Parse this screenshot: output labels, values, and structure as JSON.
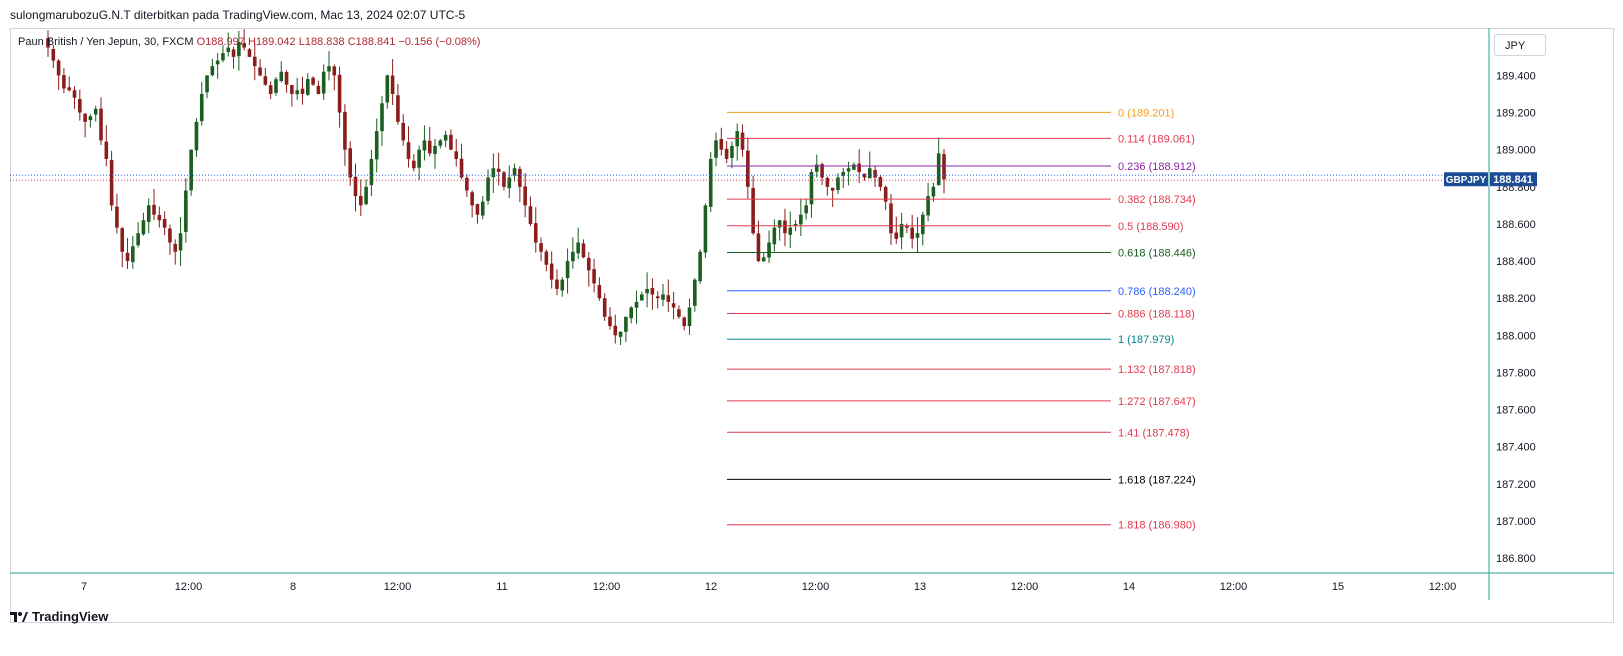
{
  "header": {
    "publisher_line": "sulongmarubozuG.N.T diterbitkan pada TradingView.com, Mac 13, 2024 02:07 UTC-5"
  },
  "legend": {
    "symbol_desc": "Paun British / Yen Jepun, 30, FXCM",
    "open": "O188.997",
    "high": "H189.042",
    "low": "L188.838",
    "close": "C188.841",
    "change": "−0.156 (−0.08%)"
  },
  "currency_button": "JPY",
  "footer": {
    "brand": "TradingView"
  },
  "colors": {
    "up": "#1b5e20",
    "down": "#8b1d1d",
    "axis_border": "#26a69a",
    "symbol_badge": "#1c4c96",
    "price_badge": "#1c4c96"
  },
  "chart_data": {
    "type": "candlestick",
    "symbol": "GBPJPY",
    "last_price": "188.841",
    "y_axis": {
      "ticks": [
        "189.400",
        "189.200",
        "189.000",
        "188.800",
        "188.600",
        "188.400",
        "188.200",
        "188.000",
        "187.800",
        "187.600",
        "187.400",
        "187.200",
        "187.000",
        "186.800"
      ],
      "range": [
        186.72,
        189.65
      ]
    },
    "x_axis": {
      "ticks": [
        "7",
        "12:00",
        "8",
        "12:00",
        "11",
        "12:00",
        "12",
        "12:00",
        "13",
        "12:00",
        "14",
        "12:00",
        "15",
        "12:00"
      ]
    },
    "fibonacci": [
      {
        "label": "0 (189.201)",
        "price": 189.201,
        "color": "#f59c1a"
      },
      {
        "label": "0.114 (189.061)",
        "price": 189.061,
        "color": "#e03a4d"
      },
      {
        "label": "0.236 (188.912)",
        "price": 188.912,
        "color": "#8e24aa"
      },
      {
        "label": "0.382 (188.734)",
        "price": 188.734,
        "color": "#e03a4d"
      },
      {
        "label": "0.5 (188.590)",
        "price": 188.59,
        "color": "#e03a4d"
      },
      {
        "label": "0.618 (188.446)",
        "price": 188.446,
        "color": "#1b5e20"
      },
      {
        "label": "0.786 (188.240)",
        "price": 188.24,
        "color": "#2962ff"
      },
      {
        "label": "0.886 (188.118)",
        "price": 188.118,
        "color": "#e03a4d"
      },
      {
        "label": "1 (187.979)",
        "price": 187.979,
        "color": "#00838f"
      },
      {
        "label": "1.132 (187.818)",
        "price": 187.818,
        "color": "#e03a4d"
      },
      {
        "label": "1.272 (187.647)",
        "price": 187.647,
        "color": "#e03a4d"
      },
      {
        "label": "1.41 (187.478)",
        "price": 187.478,
        "color": "#e03a4d"
      },
      {
        "label": "1.618 (187.224)",
        "price": 187.224,
        "color": "#000000"
      },
      {
        "label": "1.818 (186.980)",
        "price": 186.98,
        "color": "#e03a4d"
      }
    ],
    "close_path": [
      189.55,
      189.48,
      189.4,
      189.33,
      189.32,
      189.28,
      189.2,
      189.15,
      189.18,
      189.22,
      189.05,
      188.95,
      188.7,
      188.58,
      188.45,
      188.4,
      188.48,
      188.55,
      188.62,
      188.7,
      188.65,
      188.62,
      188.58,
      188.5,
      188.45,
      188.55,
      188.78,
      189.0,
      189.15,
      189.3,
      189.4,
      189.45,
      189.48,
      189.52,
      189.55,
      189.5,
      189.58,
      189.55,
      189.5,
      189.45,
      189.4,
      189.35,
      189.3,
      189.38,
      189.42,
      189.35,
      189.3,
      189.32,
      189.3,
      189.38,
      189.35,
      189.3,
      189.42,
      189.45,
      189.4,
      189.2,
      189.0,
      188.85,
      188.75,
      188.7,
      188.8,
      188.95,
      189.1,
      189.25,
      189.4,
      189.3,
      189.15,
      189.05,
      188.95,
      188.9,
      189.0,
      189.05,
      188.98,
      189.02,
      189.05,
      189.08,
      189.0,
      188.95,
      188.85,
      188.78,
      188.7,
      188.65,
      188.72,
      188.85,
      188.9,
      188.88,
      188.8,
      188.85,
      188.9,
      188.8,
      188.7,
      188.6,
      188.5,
      188.45,
      188.38,
      188.3,
      188.25,
      188.3,
      188.4,
      188.45,
      188.5,
      188.42,
      188.35,
      188.28,
      188.2,
      188.1,
      188.05,
      188.0,
      188.02,
      188.1,
      188.15,
      188.18,
      188.22,
      188.25,
      188.22,
      188.2,
      188.22,
      188.18,
      188.15,
      188.1,
      188.05,
      188.15,
      188.3,
      188.45,
      188.7,
      188.95,
      189.05,
      189.0,
      188.95,
      189.02,
      189.1,
      189.0,
      188.8,
      188.55,
      188.4,
      188.42,
      188.5,
      188.58,
      188.62,
      188.55,
      188.58,
      188.6,
      188.65,
      188.7,
      188.88,
      188.92,
      188.85,
      188.8,
      188.78,
      188.85,
      188.88,
      188.9,
      188.92,
      188.88,
      188.85,
      188.9,
      188.85,
      188.8,
      188.72,
      188.55,
      188.52,
      188.6,
      188.58,
      188.52,
      188.55,
      188.65,
      188.75,
      188.8,
      188.98,
      188.84
    ]
  }
}
